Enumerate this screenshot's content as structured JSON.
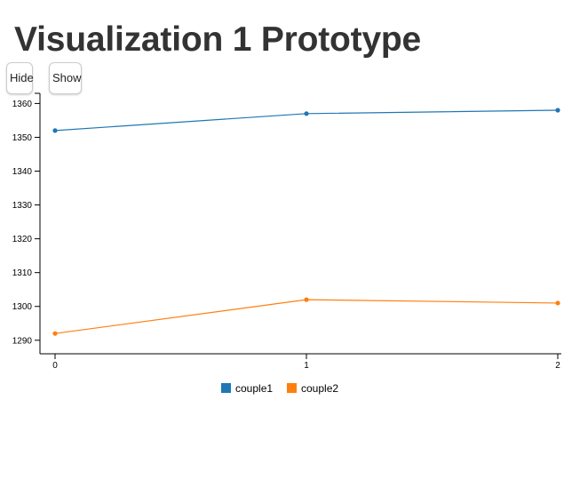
{
  "page": {
    "title": "Visualization 1 Prototype"
  },
  "controls": {
    "hide_label": "Hide",
    "show_label": "Show"
  },
  "chart_data": {
    "type": "line",
    "x": [
      0,
      1,
      2
    ],
    "x_tick_labels": [
      "0",
      "1",
      "2"
    ],
    "ylim": [
      1286,
      1363
    ],
    "y_ticks": [
      1290,
      1300,
      1310,
      1320,
      1330,
      1340,
      1350,
      1360
    ],
    "grid": false,
    "legend_position": "bottom-center",
    "series": [
      {
        "name": "couple1",
        "color": "#1f77b4",
        "values": [
          1352,
          1357,
          1358
        ]
      },
      {
        "name": "couple2",
        "color": "#ff7f0e",
        "values": [
          1292,
          1302,
          1301
        ]
      }
    ]
  }
}
